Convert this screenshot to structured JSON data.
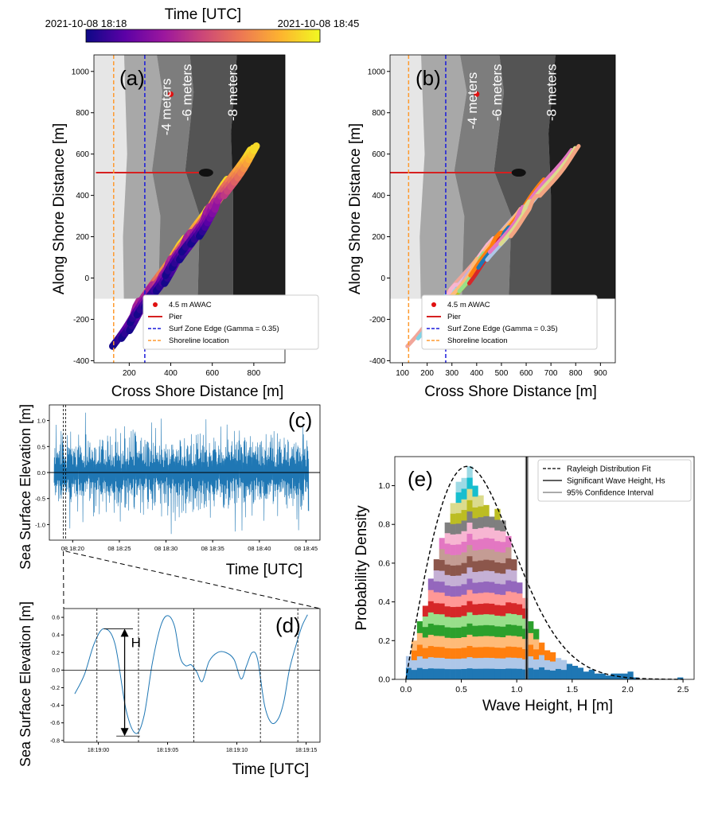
{
  "colorbar": {
    "title": "Time [UTC]",
    "start_label": "2021-10-08 18:18",
    "end_label": "2021-10-08 18:45",
    "colors": [
      "#0d0887",
      "#5c01a6",
      "#9c179e",
      "#cc4778",
      "#ed7953",
      "#fdb42f",
      "#f0f921"
    ]
  },
  "chart_data": [
    {
      "id": "a",
      "panel_label": "(a)",
      "type": "scatter",
      "xlabel": "Cross Shore Distance [m]",
      "ylabel": "Along Shore Distance [m]",
      "xlim": [
        30,
        950
      ],
      "ylim": [
        -410,
        1080
      ],
      "xticks": [
        200,
        400,
        600,
        800
      ],
      "yticks": [
        -400,
        -200,
        0,
        200,
        400,
        600,
        800,
        1000
      ],
      "depth_labels": [
        {
          "text": "-4 meters",
          "x": 400,
          "y": 690
        },
        {
          "text": "-6 meters",
          "x": 500,
          "y": 760
        },
        {
          "text": "-8 meters",
          "x": 720,
          "y": 760
        }
      ],
      "awac": {
        "x": 400,
        "y": 890
      },
      "pier": {
        "x0": 40,
        "x1": 580,
        "y": 510
      },
      "surf_zone_x": 275,
      "shoreline_x": 125,
      "legend": [
        "4.5 m AWAC",
        "Pier",
        "Surf Zone Edge (Gamma = 0.35)",
        "Shoreline location"
      ],
      "tracks_colored_by": "time"
    },
    {
      "id": "b",
      "panel_label": "(b)",
      "type": "scatter",
      "xlabel": "Cross Shore Distance [m]",
      "ylabel": "Along Shore Distance [m]",
      "xlim": [
        50,
        960
      ],
      "ylim": [
        -410,
        1080
      ],
      "xticks": [
        100,
        200,
        300,
        400,
        500,
        600,
        700,
        800,
        900
      ],
      "yticks": [
        -400,
        -200,
        0,
        200,
        400,
        600,
        800,
        1000
      ],
      "depth_labels": [
        {
          "text": "-4 meters",
          "x": 400,
          "y": 720
        },
        {
          "text": "-6 meters",
          "x": 500,
          "y": 760
        },
        {
          "text": "-8 meters",
          "x": 720,
          "y": 760
        }
      ],
      "awac": {
        "x": 400,
        "y": 890
      },
      "pier": {
        "x0": 50,
        "x1": 580,
        "y": 510
      },
      "surf_zone_x": 275,
      "shoreline_x": 125,
      "legend": [
        "4.5 m AWAC",
        "Pier",
        "Surf Zone Edge (Gamma = 0.35)",
        "Shoreline location"
      ],
      "tracks_colored_by": "track"
    },
    {
      "id": "c",
      "panel_label": "(c)",
      "type": "line",
      "xlabel": "Time [UTC]",
      "ylabel": "Sea Surface Elevation [m]",
      "xlim": [
        17.5,
        46.5
      ],
      "ylim": [
        -1.3,
        1.3
      ],
      "xticks": [
        "08 18:20",
        "08 18:25",
        "08 18:30",
        "08 18:35",
        "08 18:40",
        "08 18:45"
      ],
      "yticks": [
        -1.0,
        -0.5,
        0.0,
        0.5,
        1.0
      ],
      "zoom_window": [
        19.0,
        19.25
      ]
    },
    {
      "id": "d",
      "panel_label": "(d)",
      "type": "line",
      "xlabel": "Time [UTC]",
      "ylabel": "Sea Surface Elevation [m]",
      "xlim": [
        -2.5,
        16.0
      ],
      "ylim": [
        -0.82,
        0.7
      ],
      "xticks": [
        "18:19:00",
        "18:19:05",
        "18:19:10",
        "18:19:15"
      ],
      "yticks": [
        -0.8,
        -0.6,
        -0.4,
        -0.2,
        0.0,
        0.2,
        0.4,
        0.6
      ],
      "x": [
        -1.7,
        -1,
        -0.3,
        0.4,
        1.2,
        2.0,
        2.7,
        3.3,
        3.9,
        4.5,
        5.0,
        5.5,
        5.9,
        6.3,
        6.7,
        7.1,
        7.5,
        8.0,
        8.6,
        9.2,
        9.8,
        10.3,
        10.7,
        11.1,
        11.5,
        12.0,
        12.5,
        13.0,
        13.4,
        13.8,
        14.3,
        14.7,
        15.1
      ],
      "y": [
        -0.27,
        -0.05,
        0.3,
        0.47,
        0.3,
        -0.45,
        -0.72,
        -0.52,
        0.08,
        0.5,
        0.62,
        0.5,
        0.15,
        0.05,
        0.06,
        -0.02,
        -0.13,
        0.1,
        0.2,
        0.2,
        0.12,
        -0.1,
        0.05,
        0.2,
        0.12,
        -0.4,
        -0.6,
        -0.55,
        -0.35,
        0.01,
        0.3,
        0.5,
        0.63
      ],
      "zero_crossings": [
        -0.1,
        2.9,
        6.9,
        11.7,
        14.4
      ],
      "annotation": "H"
    },
    {
      "id": "e",
      "panel_label": "(e)",
      "type": "bar",
      "xlabel": "Wave Height, H [m]",
      "ylabel": "Probability Density",
      "xlim": [
        -0.1,
        2.6
      ],
      "ylim": [
        0,
        1.15
      ],
      "xticks": [
        0.0,
        0.5,
        1.0,
        1.5,
        2.0,
        2.5
      ],
      "yticks": [
        0.0,
        0.2,
        0.4,
        0.6,
        0.8,
        1.0
      ],
      "bin_width": 0.05,
      "bin_starts": [
        0.0,
        0.05,
        0.1,
        0.15,
        0.2,
        0.25,
        0.3,
        0.35,
        0.4,
        0.45,
        0.5,
        0.55,
        0.6,
        0.65,
        0.7,
        0.75,
        0.8,
        0.85,
        0.9,
        0.95,
        1.0,
        1.05,
        1.1,
        1.15,
        1.2,
        1.25,
        1.3,
        1.35,
        1.4,
        1.45,
        1.5,
        1.55,
        1.6,
        1.65,
        1.7,
        1.75,
        1.8,
        1.85,
        1.9,
        1.95,
        2.0,
        2.05,
        2.45
      ],
      "values": [
        0.12,
        0.2,
        0.3,
        0.38,
        0.52,
        0.62,
        0.73,
        0.81,
        0.91,
        1.02,
        1.04,
        1.1,
        1.0,
        0.95,
        0.9,
        0.84,
        0.88,
        0.82,
        0.74,
        0.62,
        0.5,
        0.42,
        0.3,
        0.26,
        0.19,
        0.15,
        0.14,
        0.11,
        0.1,
        0.08,
        0.07,
        0.06,
        0.04,
        0.05,
        0.03,
        0.03,
        0.02,
        0.03,
        0.03,
        0.03,
        0.04,
        0.01,
        0.01
      ],
      "rayleigh_hrms": 0.78,
      "hs": 1.09,
      "ci": [
        1.08,
        1.1
      ],
      "stack_colors": [
        "#1f77b4",
        "#aec7e8",
        "#ff7f0e",
        "#ffbb78",
        "#2ca02c",
        "#98df8a",
        "#d62728",
        "#ff9896",
        "#9467bd",
        "#c5b0d5",
        "#8c564b",
        "#c49c94",
        "#e377c2",
        "#f7b6d2",
        "#7f7f7f",
        "#bcbd22",
        "#dbdb8d",
        "#17becf",
        "#9edae5"
      ],
      "legend": [
        "Rayleigh Distribution Fit",
        "Significant Wave Height, Hs",
        "95% Confidence Interval"
      ]
    }
  ]
}
